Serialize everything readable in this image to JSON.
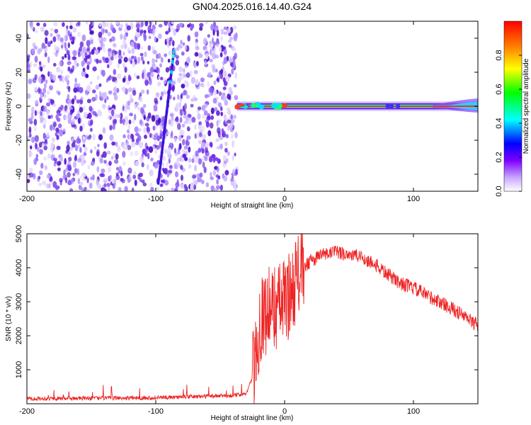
{
  "title": "GN04.2025.016.14.40.G24",
  "chart_data": [
    {
      "type": "heatmap",
      "xlabel": "Height of straight line (km)",
      "ylabel": "Frequency (Hz)",
      "xlim": [
        -200,
        150
      ],
      "ylim": [
        -50,
        50
      ],
      "x_ticks": [
        -200,
        -100,
        0,
        100
      ],
      "y_ticks": [
        -40,
        -20,
        0,
        20,
        40
      ],
      "colorbar": {
        "label": "Normalized spectral amplitude",
        "range": [
          0,
          1
        ],
        "ticks": [
          0.0,
          0.2,
          0.4,
          0.6,
          0.8
        ],
        "colormap": [
          "#ffffff",
          "#7f00ff",
          "#0000ff",
          "#00ffff",
          "#00ff00",
          "#ffff00",
          "#ff8000",
          "#ff0000"
        ]
      },
      "noise_region_x": [
        -200,
        -37
      ],
      "signal_line": {
        "x_range": [
          -37,
          150
        ],
        "frequency": 0
      },
      "drift_streak": {
        "x": [
          -98,
          -86
        ],
        "y": [
          -45,
          32
        ]
      }
    },
    {
      "type": "line",
      "xlabel": "Height of straight line (km)",
      "ylabel": "SNR (10 * v/v)",
      "xlim": [
        -200,
        150
      ],
      "ylim": [
        0,
        5000
      ],
      "x_ticks": [
        -200,
        -100,
        0,
        100
      ],
      "y_ticks": [
        1000,
        2000,
        3000,
        4000,
        5000
      ],
      "color": "#ee2222",
      "series": [
        {
          "x": [
            -200,
            -180,
            -160,
            -140,
            -120,
            -100,
            -80,
            -60,
            -40,
            -30,
            -25,
            -22,
            -20,
            -18,
            -15,
            -10,
            -5,
            0,
            5,
            10,
            20,
            30,
            40,
            50,
            60,
            70,
            80,
            90,
            100,
            110,
            120,
            130,
            140,
            150
          ],
          "values": [
            150,
            155,
            160,
            165,
            170,
            180,
            200,
            220,
            240,
            300,
            800,
            1500,
            2200,
            2600,
            2700,
            2800,
            2900,
            3000,
            3300,
            3800,
            4200,
            4400,
            4450,
            4400,
            4300,
            4100,
            3800,
            3550,
            3400,
            3200,
            3000,
            2800,
            2550,
            2300
          ]
        }
      ]
    }
  ]
}
